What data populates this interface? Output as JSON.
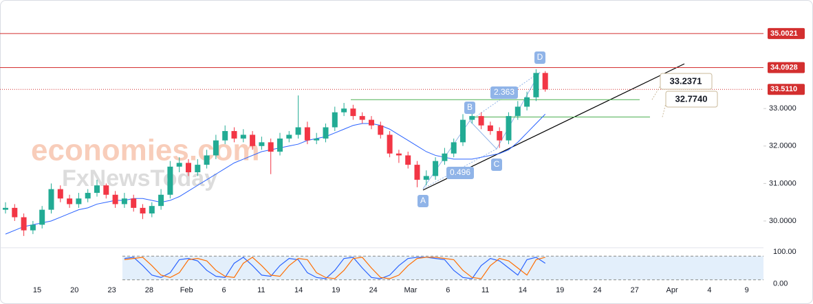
{
  "chart_data": {
    "type": "candlestick",
    "open": [
      30.3,
      30.35,
      30.1,
      29.75,
      29.9,
      30.3,
      30.85,
      30.6,
      30.45,
      30.6,
      30.75,
      30.95,
      30.7,
      30.45,
      30.6,
      30.35,
      30.2,
      30.4,
      30.7,
      31.45,
      31.55,
      31.3,
      31.5,
      31.75,
      32.15,
      32.4,
      32.2,
      32.3,
      32.0,
      32.1,
      31.85,
      32.2,
      32.3,
      32.5,
      32.15,
      32.2,
      32.5,
      32.9,
      33.0,
      32.8,
      32.7,
      32.55,
      32.3,
      31.8,
      31.75,
      31.5,
      31.1,
      31.2,
      31.6,
      31.8,
      32.1,
      32.7,
      32.8,
      32.55,
      32.4,
      32.15,
      32.8,
      33.05,
      33.3,
      33.95
    ],
    "high": [
      30.5,
      30.45,
      30.2,
      30.0,
      30.4,
      31.0,
      30.95,
      30.7,
      30.75,
      30.85,
      31.1,
      31.0,
      30.8,
      30.75,
      30.7,
      30.45,
      30.5,
      30.85,
      31.6,
      31.7,
      31.65,
      31.65,
      31.9,
      32.3,
      32.55,
      32.5,
      32.45,
      32.4,
      32.25,
      32.2,
      32.35,
      32.4,
      33.35,
      32.65,
      32.35,
      32.6,
      33.05,
      33.15,
      33.1,
      32.9,
      32.8,
      32.65,
      32.4,
      31.9,
      31.85,
      31.6,
      31.35,
      31.7,
      31.95,
      32.2,
      32.85,
      32.9,
      32.9,
      32.65,
      32.5,
      32.9,
      33.2,
      33.45,
      34.05,
      34.0
    ],
    "low": [
      30.2,
      30.0,
      29.6,
      29.65,
      29.8,
      30.2,
      30.5,
      30.35,
      30.35,
      30.5,
      30.65,
      30.6,
      30.35,
      30.35,
      30.25,
      30.05,
      30.1,
      30.3,
      30.6,
      31.3,
      31.2,
      31.2,
      31.4,
      31.65,
      32.05,
      32.1,
      32.1,
      31.9,
      31.9,
      31.25,
      31.75,
      32.1,
      32.2,
      32.05,
      32.05,
      32.1,
      32.4,
      32.8,
      32.7,
      32.6,
      32.45,
      32.2,
      31.7,
      31.55,
      31.4,
      30.9,
      30.95,
      31.1,
      31.5,
      31.7,
      32.0,
      32.6,
      32.45,
      32.3,
      31.95,
      32.05,
      32.7,
      32.95,
      33.2,
      33.45
    ],
    "close": [
      30.35,
      30.1,
      29.75,
      29.9,
      30.3,
      30.85,
      30.6,
      30.45,
      30.6,
      30.75,
      30.95,
      30.7,
      30.45,
      30.6,
      30.35,
      30.2,
      30.4,
      30.7,
      31.45,
      31.55,
      31.3,
      31.5,
      31.75,
      32.15,
      32.4,
      32.2,
      32.3,
      32.0,
      32.1,
      31.85,
      32.2,
      32.3,
      32.5,
      32.15,
      32.2,
      32.5,
      32.9,
      33.0,
      32.8,
      32.7,
      32.55,
      32.3,
      31.8,
      31.75,
      31.5,
      31.1,
      31.2,
      31.6,
      31.8,
      32.1,
      32.7,
      32.8,
      32.55,
      32.4,
      32.15,
      32.8,
      33.05,
      33.3,
      33.95,
      33.51
    ],
    "up_color": "#22ab94",
    "down_color": "#f23645",
    "ma": {
      "color": "#2962ff",
      "values": [
        29.65,
        29.75,
        29.85,
        29.9,
        29.95,
        30.0,
        30.1,
        30.2,
        30.3,
        30.35,
        30.45,
        30.5,
        30.55,
        30.55,
        30.6,
        30.6,
        30.55,
        30.5,
        30.55,
        30.65,
        30.8,
        30.95,
        31.1,
        31.25,
        31.4,
        31.55,
        31.65,
        31.75,
        31.85,
        31.9,
        31.95,
        32.0,
        32.05,
        32.15,
        32.2,
        32.25,
        32.35,
        32.45,
        32.55,
        32.6,
        32.6,
        32.55,
        32.45,
        32.3,
        32.15,
        32.0,
        31.85,
        31.75,
        31.7,
        31.65,
        31.65,
        31.65,
        31.7,
        31.75,
        31.8,
        31.9,
        32.1,
        32.35,
        32.6,
        32.85
      ]
    },
    "ylim": [
      29.286,
      35.897
    ],
    "yticks": [
      {
        "value": 30,
        "label": "30.0000"
      },
      {
        "value": 31,
        "label": "31.0000"
      },
      {
        "value": 32,
        "label": "32.0000"
      },
      {
        "value": 33,
        "label": "33.0000"
      }
    ],
    "levels": [
      35.0021,
      34.0928,
      {
        "value": 33.511,
        "label": "33.5110"
      }
    ],
    "level_color": "#d32f2f",
    "targets": [
      33.2371,
      {
        "value": 32.774,
        "label": "32.7740"
      }
    ],
    "target_color": "#4caf50",
    "categories": [
      "15",
      "20",
      "23",
      "28",
      "Feb",
      "6",
      "11",
      "14",
      "19",
      "24",
      "Mar",
      "6",
      "11",
      "14",
      "19",
      "24",
      "27",
      "Apr",
      "4",
      "9"
    ],
    "oscillator": {
      "ylim": [
        -15,
        115
      ],
      "yticks": [
        {
          "value": 100,
          "label": "100.00"
        },
        {
          "value": 0,
          "label": "0.00"
        }
      ],
      "series": [
        {
          "color": "#2962ff",
          "values": [
            null,
            null,
            null,
            null,
            null,
            null,
            null,
            null,
            null,
            null,
            null,
            null,
            null,
            90,
            95,
            60,
            20,
            10,
            30,
            85,
            90,
            80,
            40,
            15,
            10,
            70,
            95,
            60,
            20,
            15,
            60,
            90,
            85,
            30,
            10,
            5,
            40,
            90,
            95,
            50,
            10,
            5,
            20,
            60,
            90,
            95,
            95,
            90,
            85,
            40,
            10,
            5,
            60,
            90,
            80,
            50,
            20,
            85,
            95,
            70
          ]
        },
        {
          "color": "#ff6d00",
          "values": [
            null,
            null,
            null,
            null,
            null,
            null,
            null,
            null,
            null,
            null,
            null,
            null,
            null,
            85,
            90,
            95,
            60,
            20,
            10,
            30,
            85,
            90,
            80,
            40,
            15,
            10,
            70,
            95,
            60,
            20,
            15,
            60,
            90,
            85,
            30,
            10,
            5,
            40,
            90,
            95,
            50,
            10,
            5,
            20,
            60,
            90,
            95,
            95,
            90,
            85,
            40,
            10,
            5,
            60,
            90,
            80,
            50,
            20,
            85,
            95
          ]
        }
      ]
    }
  },
  "annotations": {
    "points": [
      "A",
      "B",
      "C",
      "D"
    ],
    "ratios": [
      2.363,
      0.496
    ]
  },
  "watermark": [
    "economies.com",
    "FxNewsToday"
  ]
}
